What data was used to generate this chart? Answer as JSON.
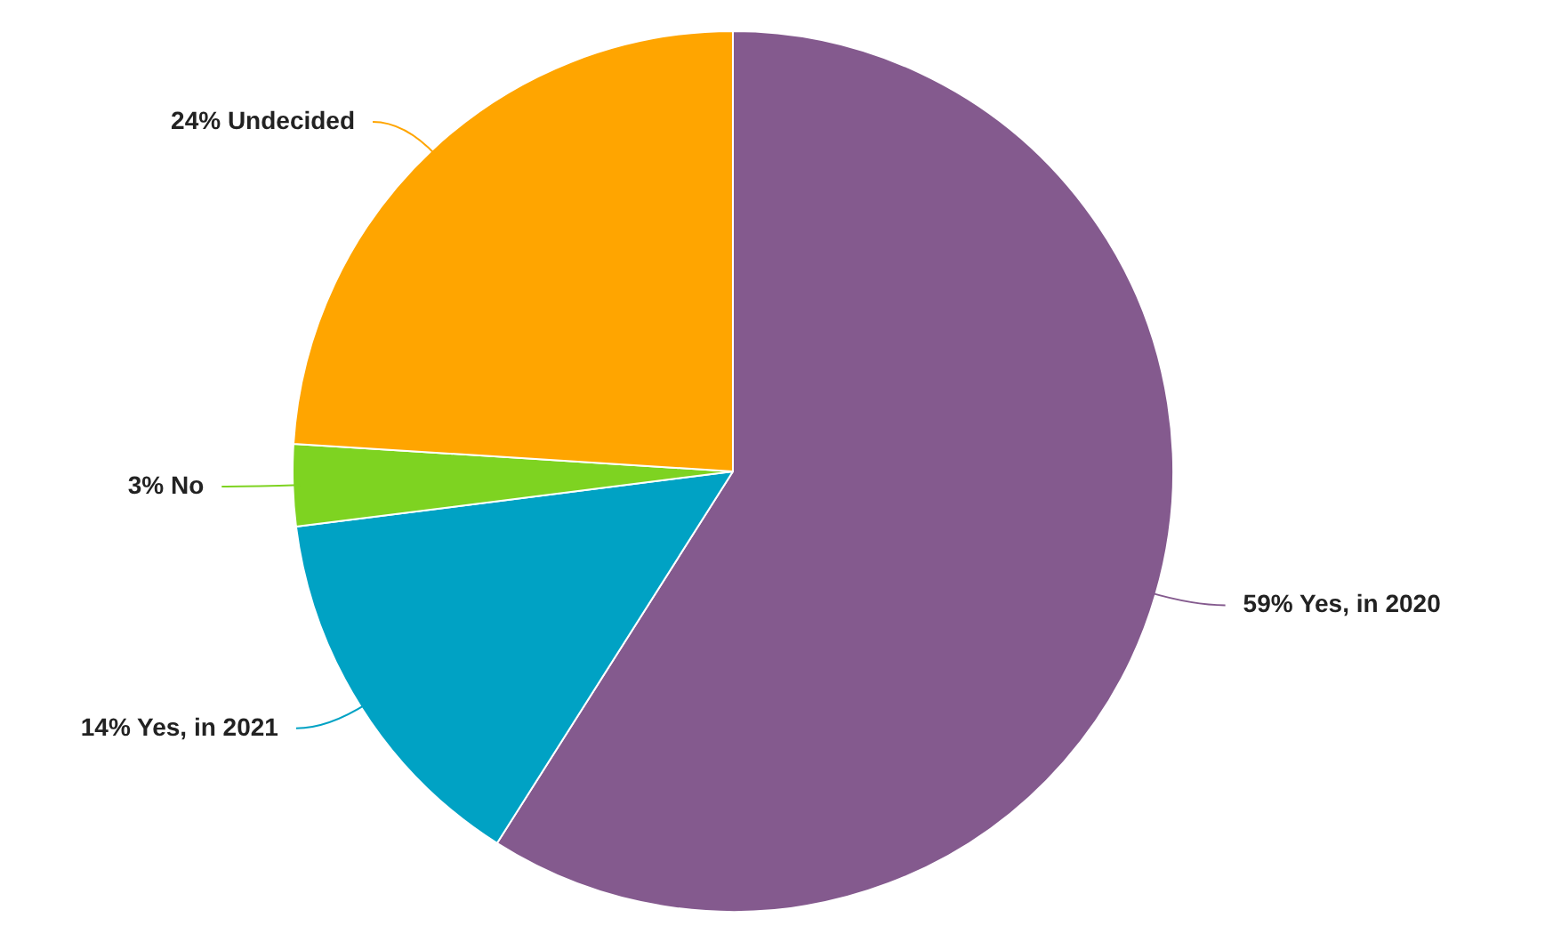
{
  "chart_data": {
    "type": "pie",
    "categories": [
      "Yes, in 2020",
      "Yes, in 2021",
      "No",
      "Undecided"
    ],
    "values": [
      59,
      14,
      3,
      24
    ],
    "value_labels": [
      "59%",
      "14%",
      "3%",
      "24%"
    ],
    "colors": [
      "#845a8e",
      "#00a2c4",
      "#7ed321",
      "#ffa500"
    ],
    "legend": false
  }
}
